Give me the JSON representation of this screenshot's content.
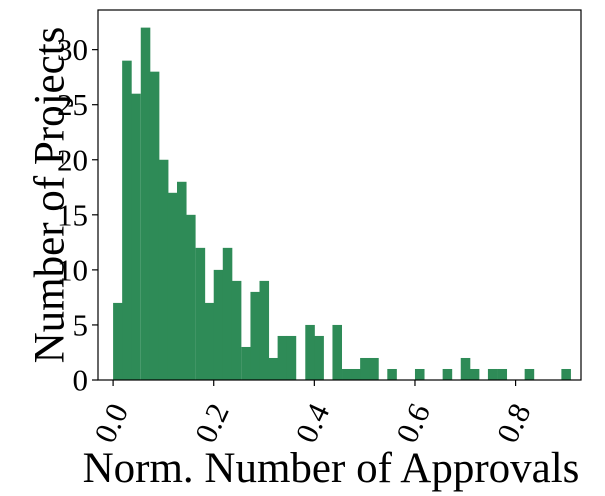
{
  "chart_data": {
    "type": "bar",
    "subtype": "histogram",
    "title": "",
    "xlabel": "Norm. Number of Approvals",
    "ylabel": "Number of Projects",
    "xlim": [
      -0.03,
      0.93
    ],
    "ylim": [
      0,
      33.6
    ],
    "bin_width": 0.01818,
    "x": [
      0.0,
      0.018,
      0.036,
      0.055,
      0.073,
      0.091,
      0.109,
      0.127,
      0.145,
      0.164,
      0.182,
      0.2,
      0.218,
      0.236,
      0.255,
      0.273,
      0.291,
      0.309,
      0.327,
      0.345,
      0.364,
      0.382,
      0.4,
      0.418,
      0.436,
      0.455,
      0.473,
      0.491,
      0.509,
      0.527,
      0.545,
      0.564,
      0.582,
      0.6,
      0.618,
      0.636,
      0.655,
      0.673,
      0.691,
      0.709,
      0.727,
      0.745,
      0.764,
      0.782,
      0.8,
      0.818,
      0.836,
      0.855,
      0.873,
      0.891
    ],
    "values": [
      7,
      29,
      26,
      32,
      28,
      20,
      17,
      18,
      15,
      12,
      7,
      10,
      12,
      9,
      3,
      8,
      9,
      2,
      4,
      4,
      0,
      5,
      4,
      0,
      5,
      1,
      1,
      2,
      2,
      0,
      1,
      0,
      0,
      1,
      0,
      0,
      1,
      0,
      2,
      1,
      0,
      1,
      1,
      0,
      0,
      1,
      0,
      0,
      0,
      1
    ],
    "xticks": [
      0.0,
      0.2,
      0.4,
      0.6,
      0.8
    ],
    "xtick_labels": [
      "0.0",
      "0.2",
      "0.4",
      "0.6",
      "0.8"
    ],
    "yticks": [
      0,
      5,
      10,
      15,
      20,
      25,
      30
    ],
    "ytick_labels": [
      "0",
      "5",
      "10",
      "15",
      "20",
      "25",
      "30"
    ],
    "bar_color": "#2e8b57",
    "grid": false,
    "legend": "none"
  }
}
